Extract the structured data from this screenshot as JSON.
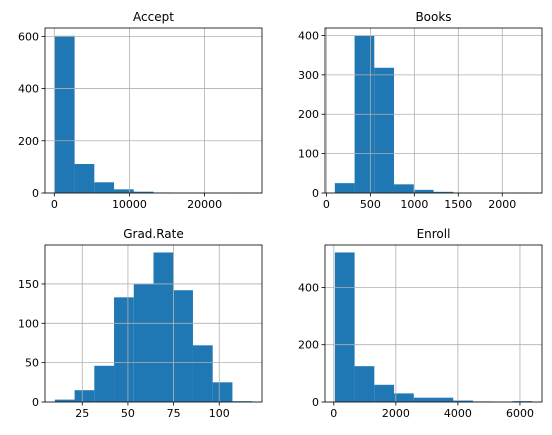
{
  "chart_data": [
    {
      "type": "histogram",
      "title": "Accept",
      "color": "#1f77b4",
      "grid": true,
      "bins": [
        72,
        2697.8,
        5323.6,
        7949.4,
        10575.2,
        13201,
        15826.8,
        18452.6,
        21078.4,
        23704.2,
        26330
      ],
      "values": [
        602,
        111,
        41,
        14,
        5,
        2,
        0,
        1,
        0,
        1
      ],
      "xlim": [
        -1241,
        27643
      ],
      "xticks": [
        0,
        10000,
        20000
      ],
      "ylim": [
        0,
        632
      ],
      "yticks": [
        0,
        200,
        400,
        600
      ]
    },
    {
      "type": "histogram",
      "title": "Books",
      "color": "#1f77b4",
      "grid": true,
      "bins": [
        96,
        320.4,
        544.8,
        769.2,
        993.6,
        1218,
        1442.4,
        1666.8,
        1891.2,
        2115.6,
        2340
      ],
      "values": [
        25,
        399,
        318,
        22,
        8,
        3,
        1,
        0,
        0,
        1
      ],
      "xlim": [
        -16,
        2452
      ],
      "xticks": [
        0,
        500,
        1000,
        1500,
        2000
      ],
      "ylim": [
        0,
        419
      ],
      "yticks": [
        0,
        100,
        200,
        300,
        400
      ]
    },
    {
      "type": "histogram",
      "title": "Grad.Rate",
      "color": "#1f77b4",
      "grid": true,
      "bins": [
        10,
        20.8,
        31.6,
        42.4,
        53.2,
        64,
        74.8,
        85.6,
        96.4,
        107.2,
        118
      ],
      "values": [
        3,
        15,
        46,
        133,
        150,
        190,
        142,
        72,
        25,
        1
      ],
      "xlim": [
        4.6,
        123.4
      ],
      "xticks": [
        25,
        50,
        75,
        100
      ],
      "ylim": [
        0,
        199.5
      ],
      "yticks": [
        0,
        50,
        100,
        150
      ]
    },
    {
      "type": "histogram",
      "title": "Enroll",
      "color": "#1f77b4",
      "grid": true,
      "bins": [
        35,
        670.7,
        1306.4,
        1942.1,
        2577.8,
        3213.5,
        3849.2,
        4484.9,
        5120.6,
        5756.3,
        6392
      ],
      "values": [
        522,
        125,
        60,
        30,
        15,
        15,
        5,
        2,
        0,
        3
      ],
      "xlim": [
        -283,
        6710
      ],
      "xticks": [
        0,
        2000,
        4000,
        6000
      ],
      "ylim": [
        0,
        548
      ],
      "yticks": [
        0,
        200,
        400
      ]
    }
  ]
}
